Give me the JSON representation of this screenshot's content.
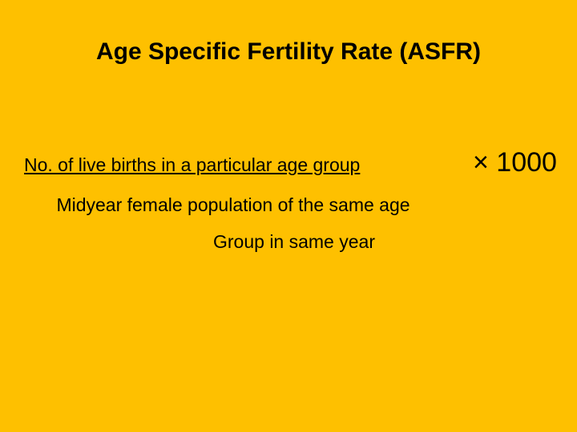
{
  "title": "Age Specific Fertility Rate (ASFR)",
  "formula": {
    "numerator": "No. of live births in a particular age group",
    "multiplier": "× 1000",
    "denominator": [
      "Midyear female population of the same age",
      "Group in same year"
    ]
  }
}
